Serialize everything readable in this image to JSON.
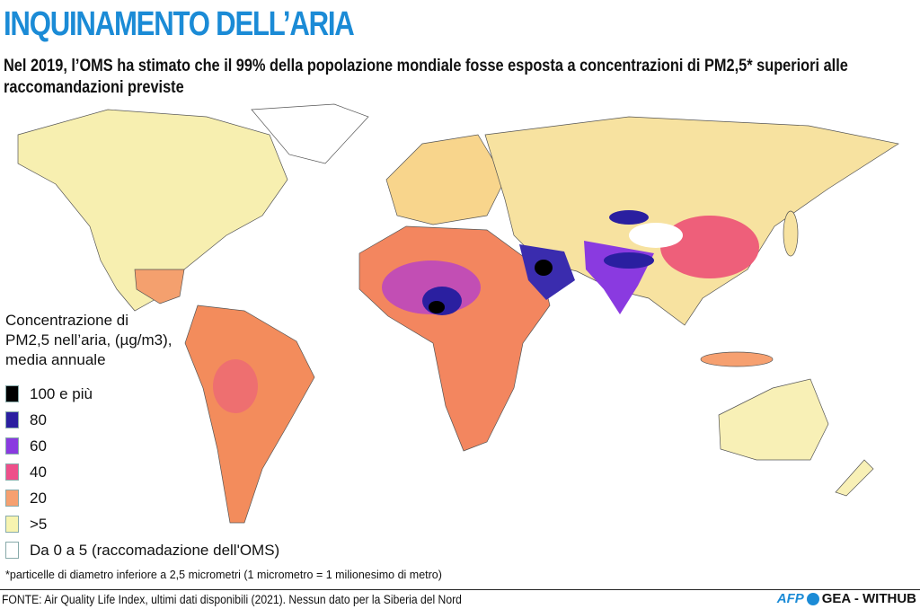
{
  "header": {
    "title": "INQUINAMENTO DELL’ARIA",
    "subtitle": "Nel 2019, l’OMS ha stimato che il 99% della popolazione mondiale fosse esposta a concentrazioni di PM2,5* superiori alle raccomandazioni previste"
  },
  "legend": {
    "title": "Concentrazione di PM2,5 nell’aria, (µg/m3), media annuale",
    "items": [
      {
        "label": "100 e più",
        "color": "#000000"
      },
      {
        "label": "80",
        "color": "#2a1fa0"
      },
      {
        "label": "60",
        "color": "#8a3ae0"
      },
      {
        "label": "40",
        "color": "#ee4f8a"
      },
      {
        "label": "20",
        "color": "#f6a070"
      },
      {
        "label": ">5",
        "color": "#f7f4b0"
      },
      {
        "label": "Da 0 a 5 (raccomadazione dell'OMS)",
        "color": "#ffffff"
      }
    ]
  },
  "footnote": "*particelle di diametro inferiore a 2,5 micrometri (1 micrometro = 1 milionesimo di metro)",
  "source": "FONTE: Air Quality Life Index, ultimi dati disponibili (2021). Nessun dato per la Siberia del Nord",
  "credit": {
    "agency": "AFP",
    "partner": "GEA - WITHUB"
  }
}
